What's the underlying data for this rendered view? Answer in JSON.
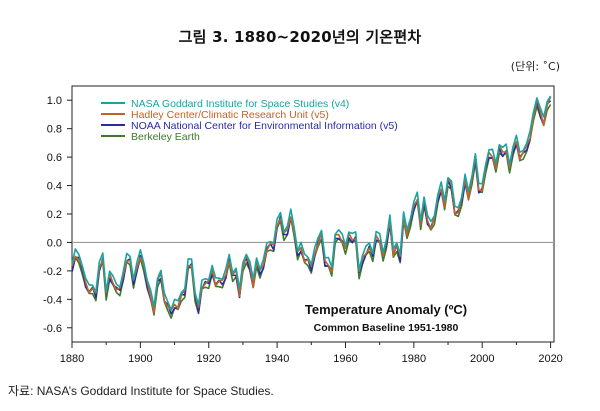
{
  "figure": {
    "title": "그림 3. 1880~2020년의 기온편차",
    "unit": "(단위: ˚C)",
    "source": "자료: NASA’s Goddard Institute for Space Studies."
  },
  "chart_data": {
    "type": "line",
    "title": "Temperature Anomaly (ºC)",
    "subtitle": "Common Baseline 1951-1980",
    "xlabel": "",
    "ylabel": "",
    "xlim": [
      1880,
      2021
    ],
    "ylim": [
      -0.7,
      1.1
    ],
    "grid": false,
    "legend_position": "top-left",
    "x_ticks": [
      "1880",
      "1900",
      "1920",
      "1940",
      "1960",
      "1980",
      "2000",
      "2020"
    ],
    "y_ticks": [
      "1.0",
      "0.8",
      "0.6",
      "0.4",
      "0.2",
      "0.0",
      "-0.2",
      "-0.4",
      "-0.6"
    ],
    "reference_line": 0.0,
    "x_start": 1880,
    "base_values": [
      -0.17,
      -0.08,
      -0.1,
      -0.17,
      -0.28,
      -0.33,
      -0.31,
      -0.36,
      -0.17,
      -0.1,
      -0.35,
      -0.22,
      -0.27,
      -0.31,
      -0.32,
      -0.23,
      -0.11,
      -0.11,
      -0.27,
      -0.17,
      -0.08,
      -0.15,
      -0.28,
      -0.37,
      -0.47,
      -0.26,
      -0.22,
      -0.39,
      -0.43,
      -0.48,
      -0.43,
      -0.44,
      -0.36,
      -0.34,
      -0.15,
      -0.14,
      -0.36,
      -0.46,
      -0.3,
      -0.27,
      -0.27,
      -0.19,
      -0.28,
      -0.26,
      -0.27,
      -0.22,
      -0.11,
      -0.22,
      -0.2,
      -0.36,
      -0.16,
      -0.09,
      -0.16,
      -0.29,
      -0.12,
      -0.2,
      -0.15,
      -0.03,
      -0.0,
      -0.02,
      0.13,
      0.19,
      0.07,
      0.09,
      0.2,
      0.09,
      -0.07,
      -0.03,
      -0.11,
      -0.11,
      -0.17,
      -0.07,
      0.01,
      0.08,
      -0.13,
      -0.14,
      -0.19,
      0.05,
      0.06,
      0.03,
      -0.03,
      0.06,
      0.03,
      0.05,
      -0.2,
      -0.11,
      -0.06,
      -0.02,
      -0.08,
      0.05,
      0.03,
      -0.08,
      0.01,
      0.16,
      -0.07,
      -0.01,
      -0.1,
      0.18,
      0.07,
      0.16,
      0.26,
      0.32,
      0.14,
      0.31,
      0.16,
      0.12,
      0.18,
      0.32,
      0.39,
      0.27,
      0.45,
      0.41,
      0.22,
      0.23,
      0.31,
      0.45,
      0.33,
      0.46,
      0.61,
      0.38,
      0.39,
      0.54,
      0.63,
      0.62,
      0.54,
      0.68,
      0.64,
      0.66,
      0.54,
      0.66,
      0.72,
      0.61,
      0.64,
      0.68,
      0.75,
      0.9,
      1.01,
      0.92,
      0.85,
      0.98,
      1.02
    ],
    "series": [
      {
        "name": "NASA Goddard Institute for Space Studies (v4)",
        "color": "#1aa3a3",
        "offset": 0.02
      },
      {
        "name": "Hadley Center/Climatic Research Unit (v5)",
        "color": "#c0622a",
        "offset": -0.01
      },
      {
        "name": "NOAA National Center for Environmental Information (v5)",
        "color": "#2a2aa6",
        "offset": -0.02
      },
      {
        "name": "Berkeley Earth",
        "color": "#3f7a2e",
        "offset": -0.04
      }
    ]
  }
}
